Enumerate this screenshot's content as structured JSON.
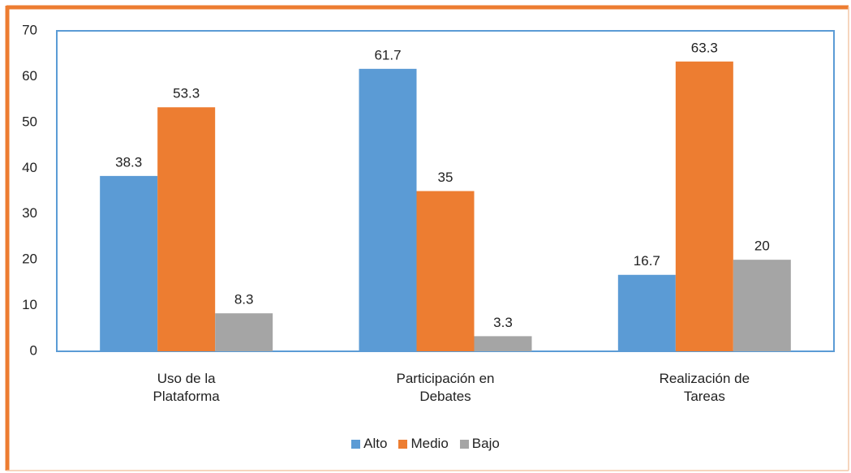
{
  "chart_data": {
    "type": "bar",
    "categories": [
      "Uso de la Plataforma",
      "Participación en Debates",
      "Realización de Tareas"
    ],
    "series": [
      {
        "name": "Alto",
        "color": "#5b9bd5",
        "values": [
          38.3,
          61.7,
          16.7
        ]
      },
      {
        "name": "Medio",
        "color": "#ed7d31",
        "values": [
          53.3,
          35,
          63.3
        ]
      },
      {
        "name": "Bajo",
        "color": "#a5a5a5",
        "values": [
          8.3,
          3.3,
          20
        ]
      }
    ],
    "ylim": [
      0,
      70
    ],
    "yticks": [
      0,
      10,
      20,
      30,
      40,
      50,
      60,
      70
    ],
    "grid": false,
    "legend": "bottom"
  }
}
